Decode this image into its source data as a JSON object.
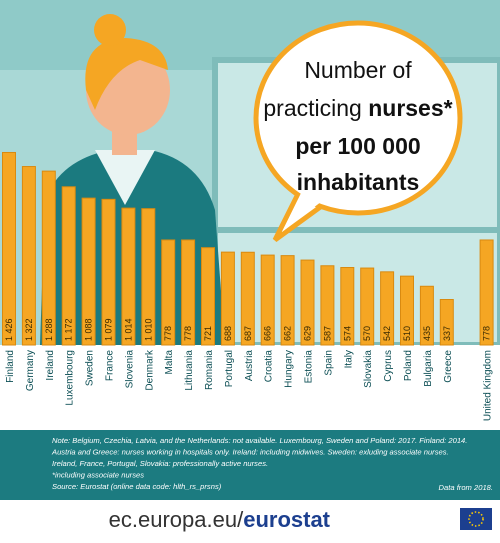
{
  "chart_data": {
    "type": "bar",
    "title_lines": [
      "Number of",
      "practicing",
      "nurses*",
      "per 100 000",
      "inhabitants"
    ],
    "categories": [
      "Finland",
      "Germany",
      "Ireland",
      "Luxembourg",
      "Sweden",
      "France",
      "Slovenia",
      "Denmark",
      "Malta",
      "Lithuania",
      "Romania",
      "Portugal",
      "Austria",
      "Croatia",
      "Hungary",
      "Estonia",
      "Spain",
      "Italy",
      "Slovakia",
      "Cyprus",
      "Poland",
      "Bulgaria",
      "Greece",
      null,
      "United Kingdom"
    ],
    "values": [
      1426,
      1322,
      1288,
      1172,
      1088,
      1079,
      1014,
      1010,
      778,
      778,
      721,
      688,
      687,
      666,
      662,
      629,
      587,
      574,
      570,
      542,
      510,
      435,
      337,
      null,
      778
    ],
    "value_labels": [
      "1 426",
      "1 322",
      "1 288",
      "1 172",
      "1 088",
      "1 079",
      "1 014",
      "1 010",
      "778",
      "778",
      "721",
      "688",
      "687",
      "666",
      "662",
      "629",
      "587",
      "574",
      "570",
      "542",
      "510",
      "435",
      "337",
      null,
      "778"
    ],
    "color": "#f5a623",
    "notes": [
      "Note: Belgium, Czechia,  Latvia, and the Netherlands: not available. Luxembourg, Sweden and Poland: 2017. Finland: 2014.",
      "Austria and  Greece: nurses working in hospitals only. Ireland: including midwives. Sweden: exluding associate nurses.",
      "Ireland, France, Portugal, Slovakia: professionally active nurses.",
      "*including associate nurses",
      "Source: Eurostat (online data code: hlth_rs_prsns)"
    ],
    "data_note": "Data from 2018.",
    "footer": [
      "ec.europa.eu/",
      "eurostat"
    ]
  }
}
